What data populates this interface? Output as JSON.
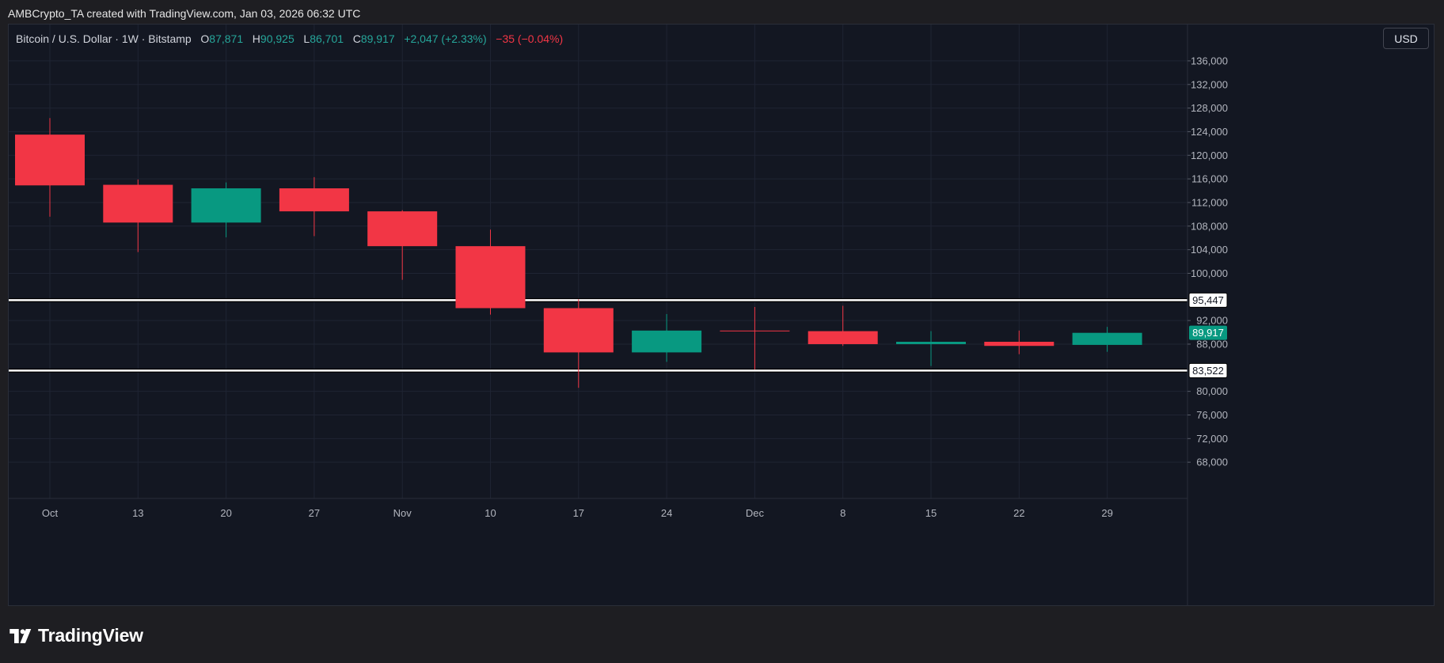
{
  "caption": "AMBCrypto_TA created with TradingView.com, Jan 03, 2026 06:32 UTC",
  "legend": {
    "symbol": "Bitcoin / U.S. Dollar · 1W · Bitstamp",
    "o_key": "O",
    "o_val": "87,871",
    "h_key": "H",
    "h_val": "90,925",
    "l_key": "L",
    "l_val": "86,701",
    "c_key": "C",
    "c_val": "89,917",
    "change": "+2,047 (+2.33%)",
    "spread": "−35 (−0.04%)"
  },
  "currency": "USD",
  "brand": "TradingView",
  "colors": {
    "up": "#089981",
    "down": "#f23645",
    "background": "#131722",
    "grid": "#1f2433",
    "level_line": "#ffffff"
  },
  "chart_data": {
    "type": "candlestick",
    "interval": "1W",
    "y_range": [
      64000,
      138000
    ],
    "y_ticks": [
      68000,
      72000,
      76000,
      80000,
      88000,
      92000,
      100000,
      104000,
      108000,
      112000,
      116000,
      120000,
      124000,
      128000,
      132000,
      136000
    ],
    "x_labels": [
      "Oct",
      "13",
      "20",
      "27",
      "Nov",
      "10",
      "17",
      "24",
      "Dec",
      "8",
      "15",
      "22",
      "29"
    ],
    "candles": [
      {
        "label": "Oct",
        "open": 123500,
        "high": 126300,
        "low": 109600,
        "close": 114900
      },
      {
        "label": "13",
        "open": 115000,
        "high": 115900,
        "low": 103600,
        "close": 108600
      },
      {
        "label": "20",
        "open": 108600,
        "high": 115400,
        "low": 106100,
        "close": 114400
      },
      {
        "label": "27",
        "open": 114400,
        "high": 116300,
        "low": 106300,
        "close": 110500
      },
      {
        "label": "Nov",
        "open": 110500,
        "high": 110700,
        "low": 98900,
        "close": 104600
      },
      {
        "label": "10",
        "open": 104600,
        "high": 107400,
        "low": 93000,
        "close": 94100
      },
      {
        "label": "17",
        "open": 94100,
        "high": 95600,
        "low": 80600,
        "close": 86600
      },
      {
        "label": "24",
        "open": 86600,
        "high": 93100,
        "low": 85000,
        "close": 90300
      },
      {
        "label": "Dec",
        "open": 90300,
        "high": 94300,
        "low": 83700,
        "close": 90200
      },
      {
        "label": "8",
        "open": 90200,
        "high": 94500,
        "low": 87700,
        "close": 88000
      },
      {
        "label": "15",
        "open": 88000,
        "high": 90200,
        "low": 84300,
        "close": 88400
      },
      {
        "label": "22",
        "open": 88400,
        "high": 90300,
        "low": 86300,
        "close": 87700
      },
      {
        "label": "29",
        "open": 87871,
        "high": 90925,
        "low": 86701,
        "close": 89917
      }
    ],
    "levels": [
      {
        "value": 95447,
        "label": "95,447"
      },
      {
        "value": 83522,
        "label": "83,522"
      }
    ],
    "last_price": {
      "value": 89917,
      "label": "89,917"
    }
  }
}
